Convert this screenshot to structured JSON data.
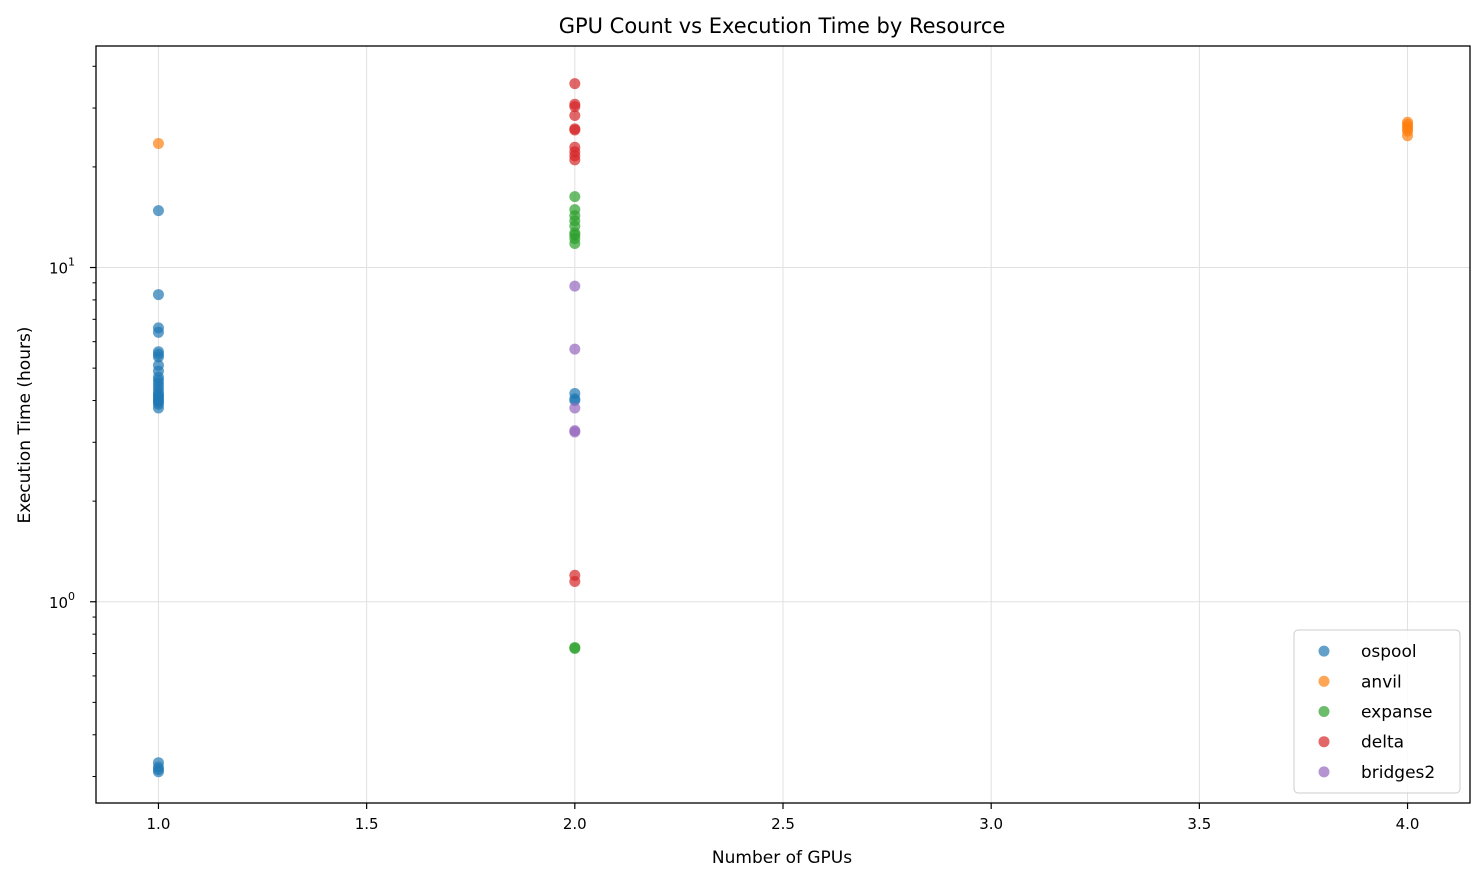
{
  "chart_data": {
    "type": "scatter",
    "title": "GPU Count vs Execution Time by Resource",
    "xlabel": "Number of GPUs",
    "ylabel": "Execution Time (hours)",
    "xlim": [
      0.85,
      4.15
    ],
    "ylim": [
      0.25,
      46
    ],
    "yscale": "log",
    "grid": true,
    "legend_position": "lower-right",
    "x_ticks": [
      {
        "value": 1.0,
        "label": "1.0"
      },
      {
        "value": 1.5,
        "label": "1.5"
      },
      {
        "value": 2.0,
        "label": "2.0"
      },
      {
        "value": 2.5,
        "label": "2.5"
      },
      {
        "value": 3.0,
        "label": "3.0"
      },
      {
        "value": 3.5,
        "label": "3.5"
      },
      {
        "value": 4.0,
        "label": "4.0"
      }
    ],
    "y_ticks": [
      {
        "value": 1,
        "base": "10",
        "exp": "0"
      },
      {
        "value": 10,
        "base": "10",
        "exp": "1"
      }
    ],
    "series": [
      {
        "name": "ospool",
        "color": "#1f77b4",
        "points": [
          [
            1,
            14.8
          ],
          [
            1,
            8.3
          ],
          [
            1,
            6.6
          ],
          [
            1,
            6.4
          ],
          [
            1,
            5.6
          ],
          [
            1,
            5.5
          ],
          [
            1,
            5.4
          ],
          [
            1,
            5.1
          ],
          [
            1,
            4.9
          ],
          [
            1,
            4.7
          ],
          [
            1,
            4.6
          ],
          [
            1,
            4.5
          ],
          [
            1,
            4.4
          ],
          [
            1,
            4.3
          ],
          [
            1,
            4.2
          ],
          [
            1,
            4.15
          ],
          [
            1,
            4.1
          ],
          [
            1,
            4.05
          ],
          [
            1,
            4.0
          ],
          [
            1,
            3.95
          ],
          [
            1,
            3.9
          ],
          [
            1,
            3.8
          ],
          [
            1,
            0.33
          ],
          [
            1,
            0.32
          ],
          [
            1,
            0.315
          ],
          [
            1,
            0.31
          ],
          [
            2,
            4.2
          ],
          [
            2,
            4.05
          ],
          [
            2,
            4.0
          ]
        ]
      },
      {
        "name": "anvil",
        "color": "#ff7f0e",
        "points": [
          [
            1,
            23.5
          ],
          [
            4,
            27.2
          ],
          [
            4,
            26.8
          ],
          [
            4,
            26.4
          ],
          [
            4,
            26.0
          ],
          [
            4,
            25.6
          ],
          [
            4,
            24.8
          ]
        ]
      },
      {
        "name": "expanse",
        "color": "#2ca02c",
        "points": [
          [
            2,
            16.3
          ],
          [
            2,
            14.9
          ],
          [
            2,
            14.3
          ],
          [
            2,
            13.8
          ],
          [
            2,
            13.3
          ],
          [
            2,
            12.7
          ],
          [
            2,
            12.5
          ],
          [
            2,
            12.2
          ],
          [
            2,
            11.8
          ],
          [
            2,
            0.73
          ],
          [
            2,
            0.725
          ]
        ]
      },
      {
        "name": "delta",
        "color": "#d62728",
        "points": [
          [
            2,
            35.5
          ],
          [
            2,
            30.8
          ],
          [
            2,
            30.3
          ],
          [
            2,
            28.5
          ],
          [
            2,
            26.0
          ],
          [
            2,
            25.8
          ],
          [
            2,
            22.9
          ],
          [
            2,
            22.2
          ],
          [
            2,
            21.6
          ],
          [
            2,
            21.0
          ],
          [
            2,
            1.2
          ],
          [
            2,
            1.15
          ]
        ]
      },
      {
        "name": "bridges2",
        "color": "#9467bd",
        "points": [
          [
            2,
            8.8
          ],
          [
            2,
            5.7
          ],
          [
            2,
            3.8
          ],
          [
            2,
            3.25
          ],
          [
            2,
            3.22
          ]
        ]
      }
    ]
  }
}
